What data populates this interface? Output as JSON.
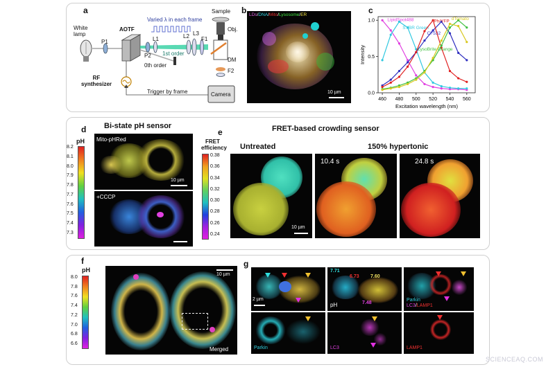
{
  "panel_a": {
    "label": "a",
    "white_lamp": "White lamp",
    "p1": "P1",
    "p2": "P2",
    "l1": "L1",
    "l2": "L2",
    "l3": "L3",
    "f1": "F1",
    "f2": "F2",
    "aotf": "AOTF",
    "first_order": "1st order",
    "zero_order": "0th order",
    "varied": "Varied λ in each frame",
    "sample": "Sample",
    "obj": "Obj.",
    "dm": "DM",
    "rf": "RF synthesizer",
    "trigger": "Trigger by frame",
    "camera": "Camera"
  },
  "panel_b": {
    "label": "b",
    "legend_ld": "LDs",
    "legend_dna": "DNA",
    "legend_mito": "Mito",
    "legend_lyso": "Lysosome",
    "legend_er": "ER",
    "scale": "10 µm"
  },
  "chart_data": {
    "type": "line",
    "label": "c",
    "xlabel": "Excitation wavelength (nm)",
    "ylabel": "Intensity",
    "xlim": [
      455,
      570
    ],
    "ylim": [
      0,
      1.05
    ],
    "xticks": [
      460,
      480,
      500,
      520,
      540,
      560
    ],
    "yticks": [
      0.0,
      0.5,
      1.0
    ],
    "series": [
      {
        "name": "LipidSpot488",
        "color": "#e040e0",
        "x": [
          460,
          470,
          480,
          490,
          500,
          510,
          520,
          530,
          540,
          550,
          560
        ],
        "y": [
          1.0,
          0.86,
          0.68,
          0.45,
          0.24,
          0.12,
          0.08,
          0.06,
          0.05,
          0.05,
          0.04
        ]
      },
      {
        "name": "SYBR Green",
        "color": "#30c8e0",
        "x": [
          460,
          470,
          480,
          490,
          500,
          510,
          520,
          530,
          540,
          550,
          560
        ],
        "y": [
          0.45,
          0.8,
          0.98,
          0.9,
          0.6,
          0.28,
          0.14,
          0.09,
          0.07,
          0.06,
          0.06
        ]
      },
      {
        "name": "CF532",
        "color": "#3030c0",
        "x": [
          460,
          470,
          480,
          490,
          500,
          510,
          520,
          530,
          540,
          550,
          560
        ],
        "y": [
          0.1,
          0.18,
          0.3,
          0.42,
          0.56,
          0.72,
          0.86,
          0.98,
          0.82,
          0.55,
          0.45
        ]
      },
      {
        "name": "Ph/YFP",
        "color": "#e02020",
        "x": [
          460,
          470,
          480,
          490,
          500,
          510,
          520,
          530,
          540,
          550,
          560
        ],
        "y": [
          0.08,
          0.14,
          0.22,
          0.36,
          0.56,
          0.85,
          1.0,
          0.62,
          0.3,
          0.2,
          0.15
        ]
      },
      {
        "name": "LysoBrite Orange",
        "color": "#40c040",
        "x": [
          460,
          470,
          480,
          490,
          500,
          510,
          520,
          530,
          540,
          550,
          560
        ],
        "y": [
          0.05,
          0.07,
          0.1,
          0.14,
          0.2,
          0.3,
          0.45,
          0.65,
          0.9,
          1.0,
          0.9
        ]
      },
      {
        "name": "dTomato",
        "color": "#d8c820",
        "x": [
          460,
          470,
          480,
          490,
          500,
          510,
          520,
          530,
          540,
          550,
          560
        ],
        "y": [
          0.04,
          0.06,
          0.08,
          0.12,
          0.18,
          0.28,
          0.48,
          0.72,
          0.95,
          0.92,
          0.7
        ]
      }
    ]
  },
  "panel_d": {
    "label": "d",
    "title": "Bi-state pH sensor",
    "unit": "pH",
    "ticks": [
      "8.2",
      "8.1",
      "8.0",
      "7.9",
      "7.8",
      "7.7",
      "7.6",
      "7.5",
      "7.4",
      "7.3"
    ],
    "top_label": "Mito-pHRed",
    "scale": "10 µm",
    "bottom_label": "+CCCP"
  },
  "panel_e": {
    "label": "e",
    "title": "FRET-based crowding sensor",
    "unit_line1": "FRET",
    "unit_line2": "efficiency",
    "ticks": [
      "0.38",
      "0.36",
      "0.34",
      "0.32",
      "0.30",
      "0.28",
      "0.26",
      "0.24"
    ],
    "untreated": "Untreated",
    "hypertonic": "150% hypertonic",
    "t1": "10.4 s",
    "t2": "24.8 s",
    "scale": "10 µm"
  },
  "panel_f": {
    "label": "f",
    "unit": "pH",
    "ticks": [
      "8.0",
      "7.8",
      "7.6",
      "7.4",
      "7.2",
      "7.0",
      "6.8",
      "6.6"
    ],
    "scale": "10 µm",
    "merged": "Merged"
  },
  "panel_g": {
    "label": "g",
    "scale": "2 µm",
    "ph1": "7.71",
    "ph2": "6.73",
    "ph3": "7.60",
    "ph4": "7.48",
    "ph_label": "pH",
    "parkin": "Parkin",
    "lc3": "LC3",
    "lamp1": "LAMP1",
    "slash": "/"
  },
  "watermark": "SCIENCEAQ.COM",
  "colors": {
    "ph_gradient": [
      "#e02020",
      "#f08020",
      "#f0e020",
      "#60d040",
      "#20c0c0",
      "#2060e0",
      "#8020e0",
      "#e020e0"
    ],
    "fret_gradient": [
      "#e02020",
      "#f0a020",
      "#e0e020",
      "#60d060",
      "#20c0c0",
      "#2040e0",
      "#a020e0",
      "#e020e0"
    ]
  }
}
